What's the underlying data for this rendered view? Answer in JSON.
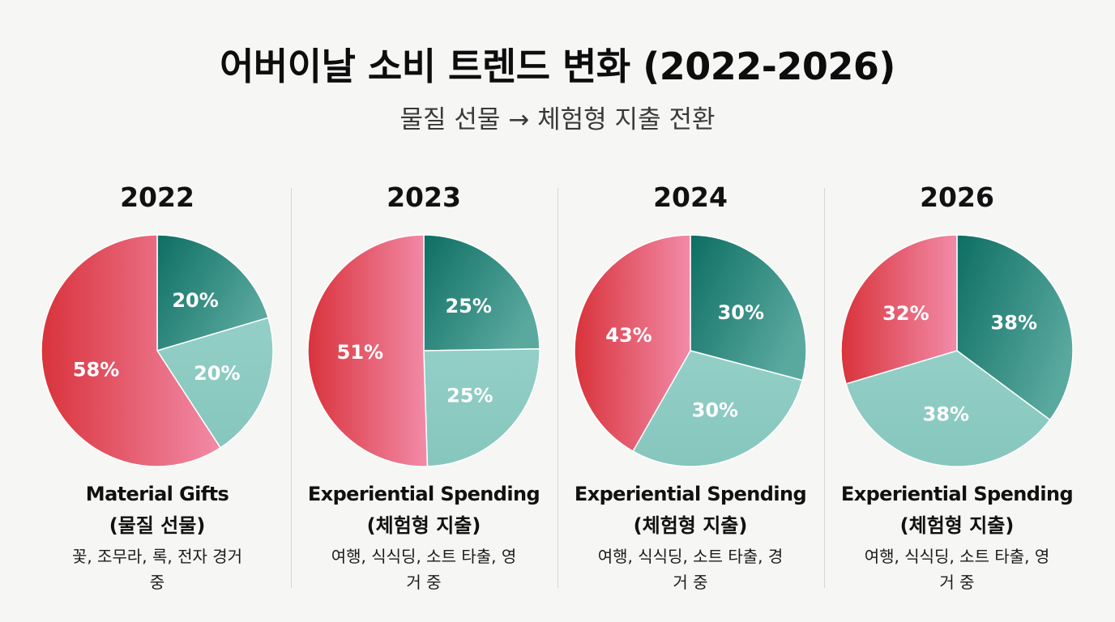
{
  "title": "어버이날 소비 트렌드 변화 (2022-2026)",
  "subtitle": "물질 선물 → 체험형 지출 전환",
  "colors": {
    "material_gift": "#e0555f",
    "experiential_dark": "#1f8a7a",
    "experiential_light": "#8fcbc3"
  },
  "chart_data": [
    {
      "type": "pie",
      "title": "2022",
      "slices": [
        {
          "value": 20,
          "label": "20%",
          "color": "#1f8a7a"
        },
        {
          "value": 20,
          "label": "20%",
          "color": "#8fcbc3"
        },
        {
          "value": 58,
          "label": "58%",
          "color": "#e0555f"
        }
      ],
      "caption": {
        "main": "Material Gifts",
        "sub": "(물질 선물)",
        "examples": "꽃, 조무라, 록, 전자 경거 중"
      }
    },
    {
      "type": "pie",
      "title": "2023",
      "slices": [
        {
          "value": 25,
          "label": "25%",
          "color": "#1f8a7a"
        },
        {
          "value": 25,
          "label": "25%",
          "color": "#8fcbc3"
        },
        {
          "value": 51,
          "label": "51%",
          "color": "#e0555f"
        }
      ],
      "caption": {
        "main": "Experiential Spending",
        "sub": "(체험형 지출)",
        "examples": "여행, 식식딩, 소트 타출, 영거 중"
      }
    },
    {
      "type": "pie",
      "title": "2024",
      "slices": [
        {
          "value": 30,
          "label": "30%",
          "color": "#1f8a7a"
        },
        {
          "value": 30,
          "label": "30%",
          "color": "#8fcbc3"
        },
        {
          "value": 43,
          "label": "43%",
          "color": "#e0555f"
        }
      ],
      "caption": {
        "main": "Experiential Spending",
        "sub": "(체험형 지출)",
        "examples": "여행, 식식딩, 소트 타출, 경거 중"
      }
    },
    {
      "type": "pie",
      "title": "2026",
      "slices": [
        {
          "value": 38,
          "label": "38%",
          "color": "#1f8a7a"
        },
        {
          "value": 38,
          "label": "38%",
          "color": "#8fcbc3"
        },
        {
          "value": 32,
          "label": "32%",
          "color": "#e0555f"
        }
      ],
      "caption": {
        "main": "Experiential Spending",
        "sub": "(체험형 지출)",
        "examples": "여행, 식식딩, 소트 타출, 영거 중"
      }
    }
  ]
}
